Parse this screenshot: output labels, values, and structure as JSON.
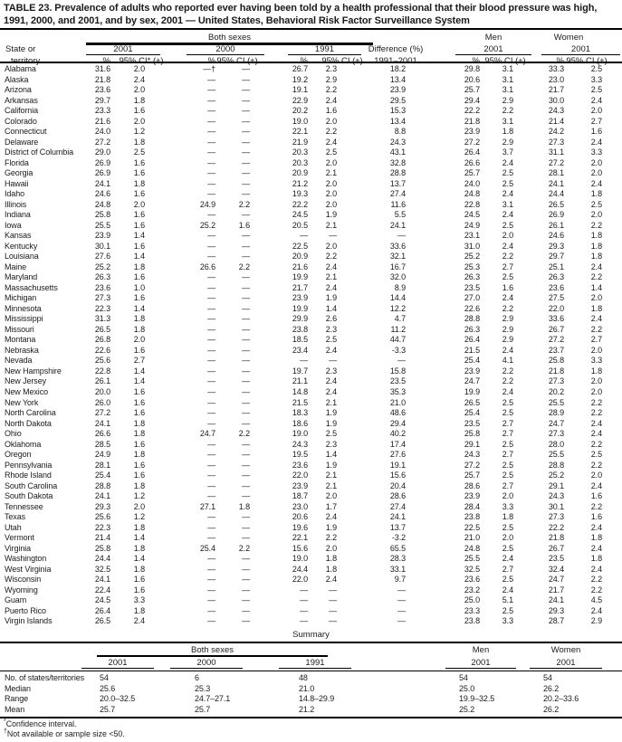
{
  "colors": {
    "text": "#1b1b1b",
    "rule": "#000000",
    "background": "#ffffff"
  },
  "title": "TABLE 23. Prevalence of adults who reported ever having been told by a health professional that their blood pressure was high, 1991, 2000, and 2001, and by sex, 2001 — United States, Behavioral Risk Factor Surveillance System",
  "header": {
    "state_col_line1": "State or",
    "state_col_line2": "territory",
    "both_sexes": "Both sexes",
    "men": "Men",
    "women": "Women",
    "year_2001": "2001",
    "year_2000": "2000",
    "year_1991": "1991",
    "pct": "%",
    "ci_star": "95% CI* (±)",
    "ci": "95% CI (±)",
    "difference_line1": "Difference (%)",
    "difference_line2": "1991–2001"
  },
  "rows": [
    {
      "state": "Alabama",
      "v": [
        "31.6",
        "2.0",
        "—†",
        "—",
        "26.7",
        "2.3",
        "18.2",
        "29.8",
        "3.1",
        "33.3",
        "2.5"
      ]
    },
    {
      "state": "Alaska",
      "v": [
        "21.8",
        "2.4",
        "—",
        "—",
        "19.2",
        "2.9",
        "13.4",
        "20.6",
        "3.1",
        "23.0",
        "3.3"
      ]
    },
    {
      "state": "Arizona",
      "v": [
        "23.6",
        "2.0",
        "—",
        "—",
        "19.1",
        "2.2",
        "23.9",
        "25.7",
        "3.1",
        "21.7",
        "2.5"
      ]
    },
    {
      "state": "Arkansas",
      "v": [
        "29.7",
        "1.8",
        "—",
        "—",
        "22.9",
        "2.4",
        "29.5",
        "29.4",
        "2.9",
        "30.0",
        "2.4"
      ]
    },
    {
      "state": "California",
      "v": [
        "23.3",
        "1.6",
        "—",
        "—",
        "20.2",
        "1.6",
        "15.3",
        "22.2",
        "2.2",
        "24.3",
        "2.0"
      ]
    },
    {
      "state": "Colorado",
      "v": [
        "21.6",
        "2.0",
        "—",
        "—",
        "19.0",
        "2.0",
        "13.4",
        "21.8",
        "3.1",
        "21.4",
        "2.7"
      ]
    },
    {
      "state": "Connecticut",
      "v": [
        "24.0",
        "1.2",
        "—",
        "—",
        "22.1",
        "2.2",
        "8.8",
        "23.9",
        "1.8",
        "24.2",
        "1.6"
      ]
    },
    {
      "state": "Delaware",
      "v": [
        "27.2",
        "1.8",
        "—",
        "—",
        "21.9",
        "2.4",
        "24.3",
        "27.2",
        "2.9",
        "27.3",
        "2.4"
      ]
    },
    {
      "state": "District of Columbia",
      "v": [
        "29.0",
        "2.5",
        "—",
        "—",
        "20.3",
        "2.5",
        "43.1",
        "26.4",
        "3.7",
        "31.1",
        "3.3"
      ]
    },
    {
      "state": "Florida",
      "v": [
        "26.9",
        "1.6",
        "—",
        "—",
        "20.3",
        "2.0",
        "32.8",
        "26.6",
        "2.4",
        "27.2",
        "2.0"
      ]
    },
    {
      "state": "Georgia",
      "v": [
        "26.9",
        "1.6",
        "—",
        "—",
        "20.9",
        "2.1",
        "28.8",
        "25.7",
        "2.5",
        "28.1",
        "2.0"
      ]
    },
    {
      "state": "Hawaii",
      "v": [
        "24.1",
        "1.8",
        "—",
        "—",
        "21.2",
        "2.0",
        "13.7",
        "24.0",
        "2.5",
        "24.1",
        "2.4"
      ]
    },
    {
      "state": "Idaho",
      "v": [
        "24.6",
        "1.6",
        "—",
        "—",
        "19.3",
        "2.0",
        "27.4",
        "24.8",
        "2.4",
        "24.4",
        "1.8"
      ]
    },
    {
      "state": "Illinois",
      "v": [
        "24.8",
        "2.0",
        "24.9",
        "2.2",
        "22.2",
        "2.0",
        "11.6",
        "22.8",
        "3.1",
        "26.5",
        "2.5"
      ]
    },
    {
      "state": "Indiana",
      "v": [
        "25.8",
        "1.6",
        "—",
        "—",
        "24.5",
        "1.9",
        "5.5",
        "24.5",
        "2.4",
        "26.9",
        "2.0"
      ]
    },
    {
      "state": "Iowa",
      "v": [
        "25.5",
        "1.6",
        "25.2",
        "1.6",
        "20.5",
        "2.1",
        "24.1",
        "24.9",
        "2.5",
        "26.1",
        "2.2"
      ]
    },
    {
      "state": "Kansas",
      "v": [
        "23.9",
        "1.4",
        "—",
        "—",
        "—",
        "—",
        "—",
        "23.1",
        "2.0",
        "24.6",
        "1.8"
      ]
    },
    {
      "state": "Kentucky",
      "v": [
        "30.1",
        "1.6",
        "—",
        "—",
        "22.5",
        "2.0",
        "33.6",
        "31.0",
        "2.4",
        "29.3",
        "1.8"
      ]
    },
    {
      "state": "Louisiana",
      "v": [
        "27.6",
        "1.4",
        "—",
        "—",
        "20.9",
        "2.2",
        "32.1",
        "25.2",
        "2.2",
        "29.7",
        "1.8"
      ]
    },
    {
      "state": "Maine",
      "v": [
        "25.2",
        "1.8",
        "26.6",
        "2.2",
        "21.6",
        "2.4",
        "16.7",
        "25.3",
        "2.7",
        "25.1",
        "2.4"
      ]
    },
    {
      "state": "Maryland",
      "v": [
        "26.3",
        "1.6",
        "—",
        "—",
        "19.9",
        "2.1",
        "32.0",
        "26.3",
        "2.5",
        "26.3",
        "2.2"
      ]
    },
    {
      "state": "Massachusetts",
      "v": [
        "23.6",
        "1.0",
        "—",
        "—",
        "21.7",
        "2.4",
        "8.9",
        "23.5",
        "1.6",
        "23.6",
        "1.4"
      ]
    },
    {
      "state": "Michigan",
      "v": [
        "27.3",
        "1.6",
        "—",
        "—",
        "23.9",
        "1.9",
        "14.4",
        "27.0",
        "2.4",
        "27.5",
        "2.0"
      ]
    },
    {
      "state": "Minnesota",
      "v": [
        "22.3",
        "1.4",
        "—",
        "—",
        "19.9",
        "1.4",
        "12.2",
        "22.6",
        "2.2",
        "22.0",
        "1.8"
      ]
    },
    {
      "state": "Mississippi",
      "v": [
        "31.3",
        "1.8",
        "—",
        "—",
        "29.9",
        "2.6",
        "4.7",
        "28.8",
        "2.9",
        "33.6",
        "2.4"
      ]
    },
    {
      "state": "Missouri",
      "v": [
        "26.5",
        "1.8",
        "—",
        "—",
        "23.8",
        "2.3",
        "11.2",
        "26.3",
        "2.9",
        "26.7",
        "2.2"
      ]
    },
    {
      "state": "Montana",
      "v": [
        "26.8",
        "2.0",
        "—",
        "—",
        "18.5",
        "2.5",
        "44.7",
        "26.4",
        "2.9",
        "27.2",
        "2.7"
      ]
    },
    {
      "state": "Nebraska",
      "v": [
        "22.6",
        "1.6",
        "—",
        "—",
        "23.4",
        "2.4",
        "-3.3",
        "21.5",
        "2.4",
        "23.7",
        "2.0"
      ]
    },
    {
      "state": "Nevada",
      "v": [
        "25.6",
        "2.7",
        "—",
        "—",
        "—",
        "—",
        "—",
        "25.4",
        "4.1",
        "25.8",
        "3.3"
      ]
    },
    {
      "state": "New Hampshire",
      "v": [
        "22.8",
        "1.4",
        "—",
        "—",
        "19.7",
        "2.3",
        "15.8",
        "23.9",
        "2.2",
        "21.8",
        "1.8"
      ]
    },
    {
      "state": "New Jersey",
      "v": [
        "26.1",
        "1.4",
        "—",
        "—",
        "21.1",
        "2.4",
        "23.5",
        "24.7",
        "2.2",
        "27.3",
        "2.0"
      ]
    },
    {
      "state": "New Mexico",
      "v": [
        "20.0",
        "1.6",
        "—",
        "—",
        "14.8",
        "2.4",
        "35.3",
        "19.9",
        "2.4",
        "20.2",
        "2.0"
      ]
    },
    {
      "state": "New York",
      "v": [
        "26.0",
        "1.6",
        "—",
        "—",
        "21.5",
        "2.1",
        "21.0",
        "26.5",
        "2.5",
        "25.5",
        "2.2"
      ]
    },
    {
      "state": "North Carolina",
      "v": [
        "27.2",
        "1.6",
        "—",
        "—",
        "18.3",
        "1.9",
        "48.6",
        "25.4",
        "2.5",
        "28.9",
        "2.2"
      ]
    },
    {
      "state": "North Dakota",
      "v": [
        "24.1",
        "1.8",
        "—",
        "—",
        "18.6",
        "1.9",
        "29.4",
        "23.5",
        "2.7",
        "24.7",
        "2.4"
      ]
    },
    {
      "state": "Ohio",
      "v": [
        "26.6",
        "1.8",
        "24.7",
        "2.2",
        "19.0",
        "2.5",
        "40.2",
        "25.8",
        "2.7",
        "27.3",
        "2.4"
      ]
    },
    {
      "state": "Oklahoma",
      "v": [
        "28.5",
        "1.6",
        "—",
        "—",
        "24.3",
        "2.3",
        "17.4",
        "29.1",
        "2.5",
        "28.0",
        "2.2"
      ]
    },
    {
      "state": "Oregon",
      "v": [
        "24.9",
        "1.8",
        "—",
        "—",
        "19.5",
        "1.4",
        "27.6",
        "24.3",
        "2.7",
        "25.5",
        "2.5"
      ]
    },
    {
      "state": "Pennsylvania",
      "v": [
        "28.1",
        "1.6",
        "—",
        "—",
        "23.6",
        "1.9",
        "19.1",
        "27.2",
        "2.5",
        "28.8",
        "2.2"
      ]
    },
    {
      "state": "Rhode Island",
      "v": [
        "25.4",
        "1.6",
        "—",
        "—",
        "22.0",
        "2.1",
        "15.6",
        "25.7",
        "2.5",
        "25.2",
        "2.0"
      ]
    },
    {
      "state": "South Carolina",
      "v": [
        "28.8",
        "1.8",
        "—",
        "—",
        "23.9",
        "2.1",
        "20.4",
        "28.6",
        "2.7",
        "29.1",
        "2.4"
      ]
    },
    {
      "state": "South Dakota",
      "v": [
        "24.1",
        "1.2",
        "—",
        "—",
        "18.7",
        "2.0",
        "28.6",
        "23.9",
        "2.0",
        "24.3",
        "1.6"
      ]
    },
    {
      "state": "Tennessee",
      "v": [
        "29.3",
        "2.0",
        "27.1",
        "1.8",
        "23.0",
        "1.7",
        "27.4",
        "28.4",
        "3.3",
        "30.1",
        "2.2"
      ]
    },
    {
      "state": "Texas",
      "v": [
        "25.6",
        "1.2",
        "—",
        "—",
        "20.6",
        "2.4",
        "24.1",
        "23.8",
        "1.8",
        "27.3",
        "1.6"
      ]
    },
    {
      "state": "Utah",
      "v": [
        "22.3",
        "1.8",
        "—",
        "—",
        "19.6",
        "1.9",
        "13.7",
        "22.5",
        "2.5",
        "22.2",
        "2.4"
      ]
    },
    {
      "state": "Vermont",
      "v": [
        "21.4",
        "1.4",
        "—",
        "—",
        "22.1",
        "2.2",
        "-3.2",
        "21.0",
        "2.0",
        "21.8",
        "1.8"
      ]
    },
    {
      "state": "Virginia",
      "v": [
        "25.8",
        "1.8",
        "25.4",
        "2.2",
        "15.6",
        "2.0",
        "65.5",
        "24.8",
        "2.5",
        "26.7",
        "2.4"
      ]
    },
    {
      "state": "Washington",
      "v": [
        "24.4",
        "1.4",
        "—",
        "—",
        "19.0",
        "1.8",
        "28.3",
        "25.5",
        "2.4",
        "23.5",
        "1.8"
      ]
    },
    {
      "state": "West Virginia",
      "v": [
        "32.5",
        "1.8",
        "—",
        "—",
        "24.4",
        "1.8",
        "33.1",
        "32.5",
        "2.7",
        "32.4",
        "2.4"
      ]
    },
    {
      "state": "Wisconsin",
      "v": [
        "24.1",
        "1.6",
        "—",
        "—",
        "22.0",
        "2.4",
        "9.7",
        "23.6",
        "2.5",
        "24.7",
        "2.2"
      ]
    },
    {
      "state": "Wyoming",
      "v": [
        "22.4",
        "1.6",
        "—",
        "—",
        "—",
        "—",
        "—",
        "23.2",
        "2.4",
        "21.7",
        "2.2"
      ]
    },
    {
      "state": "Guam",
      "v": [
        "24.5",
        "3.3",
        "—",
        "—",
        "—",
        "—",
        "—",
        "25.0",
        "5.1",
        "24.1",
        "4.5"
      ]
    },
    {
      "state": "Puerto Rico",
      "v": [
        "26.4",
        "1.8",
        "—",
        "—",
        "—",
        "—",
        "—",
        "23.3",
        "2.5",
        "29.3",
        "2.4"
      ]
    },
    {
      "state": "Virgin Islands",
      "v": [
        "26.5",
        "2.4",
        "—",
        "—",
        "—",
        "—",
        "—",
        "23.8",
        "3.3",
        "28.7",
        "2.9"
      ]
    }
  ],
  "summary": {
    "heading": "Summary",
    "both_sexes": "Both sexes",
    "men": "Men",
    "women": "Women",
    "col_labels": [
      "2001",
      "2000",
      "1991",
      "2001",
      "2001"
    ],
    "rows": [
      {
        "label": "No. of states/territories",
        "v": [
          "54",
          "6",
          "48",
          "54",
          "54"
        ]
      },
      {
        "label": "Median",
        "v": [
          "25.6",
          "25.3",
          "21.0",
          "25.0",
          "26.2"
        ]
      },
      {
        "label": "Range",
        "v": [
          "20.0–32.5",
          "24.7–27.1",
          "14.8–29.9",
          "19.9–32.5",
          "20.2–33.6"
        ]
      },
      {
        "label": "Mean",
        "v": [
          "25.7",
          "25.7",
          "21.2",
          "25.2",
          "26.2"
        ]
      }
    ]
  },
  "footnotes": [
    {
      "marker": "*",
      "text": "Confidence interval."
    },
    {
      "marker": "†",
      "text": "Not available or sample size <50."
    }
  ]
}
